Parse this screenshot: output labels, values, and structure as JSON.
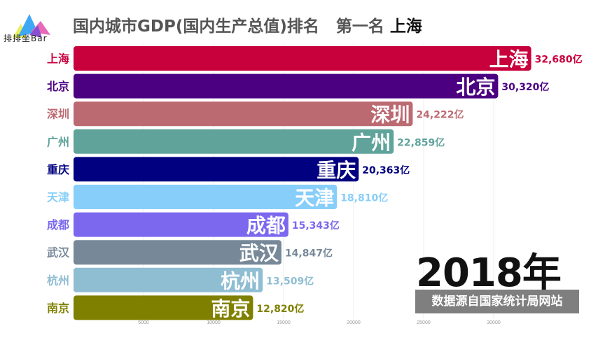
{
  "logo": {
    "text": "排排坐Bar"
  },
  "title": {
    "main": "国内城市GDP(国内生产总值)排名",
    "leader_prefix": "第一名",
    "leader": "上海"
  },
  "year": "2018年",
  "source": "数据源自国家统计局网站",
  "chart_data": {
    "type": "bar",
    "orientation": "horizontal",
    "unit": "亿",
    "categories": [
      "上海",
      "北京",
      "深圳",
      "广州",
      "重庆",
      "天津",
      "成都",
      "武汉",
      "杭州",
      "南京"
    ],
    "values": [
      32680,
      30320,
      24222,
      22859,
      20363,
      18810,
      15343,
      14847,
      13509,
      12820
    ],
    "value_labels": [
      "32,680亿",
      "30,320亿",
      "24,222亿",
      "22,859亿",
      "20,363亿",
      "18,810亿",
      "15,343亿",
      "14,847亿",
      "13,509亿",
      "12,820亿"
    ],
    "colors": [
      "#c8003c",
      "#4b0082",
      "#bc6a72",
      "#5fa39b",
      "#000080",
      "#87cefa",
      "#7b68ee",
      "#778899",
      "#8fbdd2",
      "#808000"
    ],
    "xticks": [
      5000,
      10000,
      15000,
      20000,
      25000,
      30000
    ],
    "xtick_labels": [
      "5000",
      "10000",
      "15000",
      "20000",
      "25000",
      "30000"
    ],
    "xlim": [
      0,
      36000
    ],
    "grid": true
  }
}
